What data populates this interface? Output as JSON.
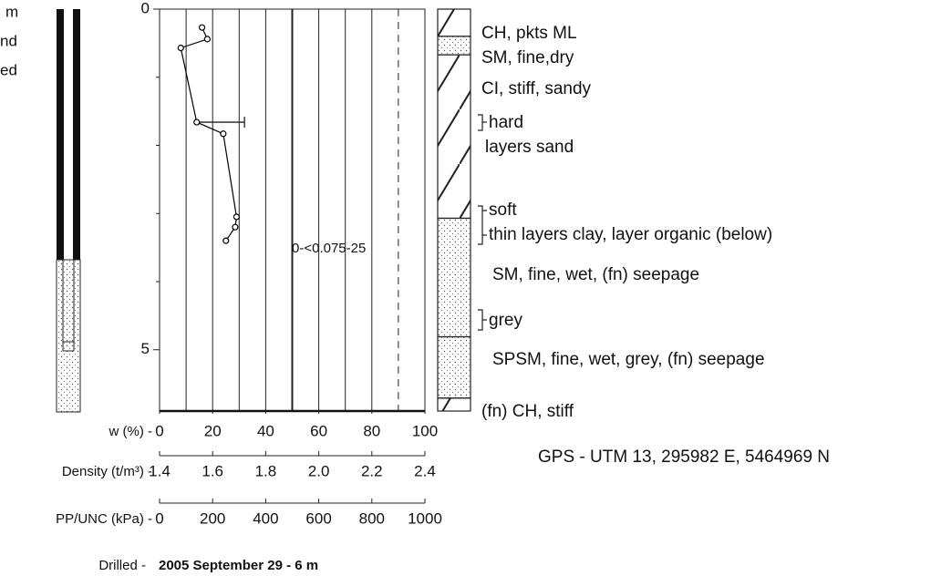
{
  "left_labels": [
    "m",
    "nd",
    "ed"
  ],
  "chart_data": {
    "type": "line",
    "x_label": "w (%) -",
    "xlim": [
      0,
      100
    ],
    "xticks": [
      0,
      20,
      40,
      60,
      80,
      100
    ],
    "xgrid": [
      10,
      20,
      30,
      40,
      50,
      60,
      70,
      80,
      90
    ],
    "ylim": [
      0,
      5.9
    ],
    "yticks": [
      0,
      5
    ],
    "yminor": [
      1,
      2,
      3,
      4
    ],
    "x": [
      16,
      18,
      8,
      14,
      24,
      29,
      28.5,
      25
    ],
    "values": [
      0.27,
      0.44,
      0.57,
      1.66,
      1.83,
      3.05,
      3.2,
      3.4
    ],
    "color": "#000000",
    "range": {
      "x": [
        14,
        32
      ],
      "y": 1.66
    },
    "annotation": "0-<0.075-25",
    "axes": [
      {
        "label": "Density (t/m³) -",
        "lim": [
          1.4,
          2.4
        ],
        "ticks": [
          1.4,
          1.6,
          1.8,
          {
            "value": 2,
            "label": "2.0"
          },
          2.2,
          2.4
        ]
      },
      {
        "label": "PP/UNC (kPa) -",
        "lim": [
          0,
          1000
        ],
        "ticks": [
          0,
          200,
          400,
          600,
          800,
          1000
        ]
      }
    ],
    "soil_layers": [
      {
        "top": 0,
        "bottom": 0.4,
        "fill": "hatch"
      },
      {
        "top": 0.4,
        "bottom": 0.67,
        "fill": "dots"
      },
      {
        "top": 0.67,
        "bottom": 3.07,
        "fill": "hatch"
      },
      {
        "top": 3.07,
        "bottom": 4.81,
        "fill": "dots"
      },
      {
        "top": 4.81,
        "bottom": 5.71,
        "fill": "dots"
      },
      {
        "top": 5.71,
        "bottom": 5.9,
        "fill": "hatch"
      }
    ]
  },
  "descriptions": [
    "CH, pkts ML",
    "SM, fine,dry",
    "CI, stiff, sandy",
    "hard",
    "layers sand",
    "soft",
    "thin layers clay, layer organic (below)",
    "SM, fine, wet, (fn) seepage",
    "grey",
    "SPSM, fine, wet, grey, (fn) seepage",
    "(fn) CH, stiff"
  ],
  "gps": "GPS - UTM 13, 295982 E, 5464969 N",
  "drilled": {
    "label": "Drilled -",
    "value": "2005 September 29 - 6 m"
  }
}
